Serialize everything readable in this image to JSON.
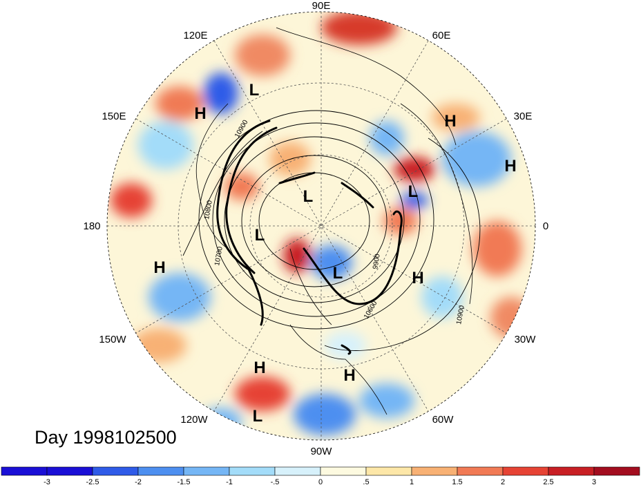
{
  "title": "Day 1998102500",
  "longitude_labels": [
    "90E",
    "60E",
    "30E",
    "0",
    "30W",
    "60W",
    "90W",
    "120W",
    "150W",
    "180",
    "150E",
    "120E"
  ],
  "pressure_centers": [
    "H",
    "L",
    "H",
    "H",
    "L",
    "L",
    "L",
    "H",
    "L",
    "H",
    "H",
    "L",
    "H"
  ],
  "contour_values": [
    "10800",
    "10700",
    "10900",
    "9900",
    "10600",
    "10900"
  ],
  "colorbar": {
    "ticks": [
      "-3",
      "-2.5",
      "-2",
      "-1.5",
      "-1",
      "-.5",
      "0",
      ".5",
      "1",
      "1.5",
      "2",
      "2.5",
      "3"
    ],
    "colors": [
      "#1a0fd6",
      "#2f5be8",
      "#4d8ff0",
      "#75b6f5",
      "#a3dcf9",
      "#d7f1fb",
      "#fdfae0",
      "#fde7a8",
      "#f8b174",
      "#f17a55",
      "#e64334",
      "#c81f24",
      "#a30d1f"
    ]
  }
}
